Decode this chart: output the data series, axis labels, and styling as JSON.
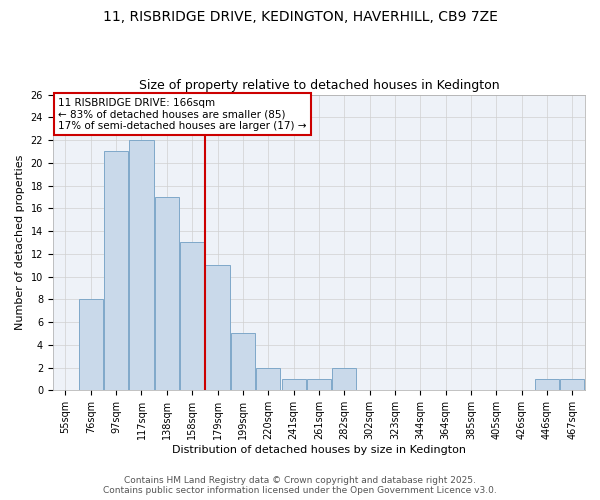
{
  "title_line1": "11, RISBRIDGE DRIVE, KEDINGTON, HAVERHILL, CB9 7ZE",
  "title_line2": "Size of property relative to detached houses in Kedington",
  "xlabel": "Distribution of detached houses by size in Kedington",
  "ylabel": "Number of detached properties",
  "bin_labels": [
    "55sqm",
    "76sqm",
    "97sqm",
    "117sqm",
    "138sqm",
    "158sqm",
    "179sqm",
    "199sqm",
    "220sqm",
    "241sqm",
    "261sqm",
    "282sqm",
    "302sqm",
    "323sqm",
    "344sqm",
    "364sqm",
    "385sqm",
    "405sqm",
    "426sqm",
    "446sqm",
    "467sqm"
  ],
  "counts": [
    0,
    8,
    21,
    22,
    17,
    13,
    11,
    5,
    2,
    1,
    1,
    2,
    0,
    0,
    0,
    0,
    0,
    0,
    0,
    1,
    1
  ],
  "bar_facecolor": "#c9d9ea",
  "bar_edgecolor": "#7fa8c9",
  "vline_bin_index": 5.52,
  "vline_color": "#cc0000",
  "annotation_text": "11 RISBRIDGE DRIVE: 166sqm\n← 83% of detached houses are smaller (85)\n17% of semi-detached houses are larger (17) →",
  "annotation_boxcolor": "#ffffff",
  "annotation_edgecolor": "#cc0000",
  "grid_color": "#d0d0d0",
  "background_color": "#ffffff",
  "plot_bg_color": "#eef2f8",
  "ylim": [
    0,
    26
  ],
  "yticks": [
    0,
    2,
    4,
    6,
    8,
    10,
    12,
    14,
    16,
    18,
    20,
    22,
    24,
    26
  ],
  "footer_text": "Contains HM Land Registry data © Crown copyright and database right 2025.\nContains public sector information licensed under the Open Government Licence v3.0.",
  "title_fontsize": 10,
  "subtitle_fontsize": 9,
  "axis_label_fontsize": 8,
  "tick_fontsize": 7,
  "annotation_fontsize": 7.5,
  "footer_fontsize": 6.5
}
